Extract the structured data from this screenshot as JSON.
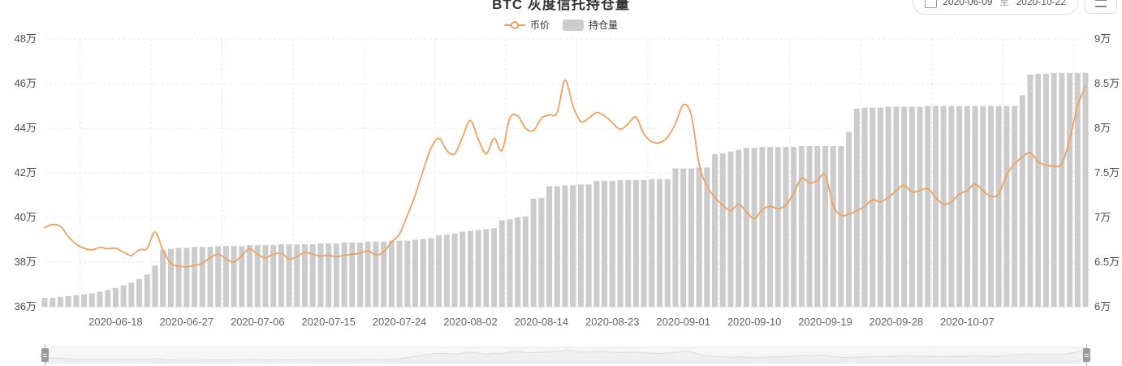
{
  "header": {
    "title": "BTC 灰度信托持仓量"
  },
  "toolbar": {
    "date_start": "2020-06-09",
    "date_separator": "至",
    "date_end": "2020-10-22"
  },
  "legend": [
    {
      "name": "币价",
      "type": "line",
      "color": "#EFA15F"
    },
    {
      "name": "持仓量",
      "type": "bar",
      "color": "#CCCCCC"
    }
  ],
  "chart_data": {
    "type": "combo",
    "title": "BTC 灰度信托持仓量",
    "legend_position": "top-center",
    "grid": {
      "style": "dashed",
      "h_lines": 7,
      "v_line_every": 9
    },
    "left_axis": {
      "series": "币价",
      "unit": "万",
      "min": 36,
      "max": 48,
      "step": 2,
      "labels": [
        "48万",
        "46万",
        "44万",
        "42万",
        "40万",
        "38万",
        "36万"
      ]
    },
    "right_axis": {
      "series": "持仓量",
      "unit": "万",
      "min": 6,
      "max": 9,
      "step": 0.5,
      "labels": [
        "9万",
        "8.5万",
        "8万",
        "7.5万",
        "7万",
        "6.5万",
        "6万"
      ]
    },
    "x_tick_labels": [
      "2020-06-18",
      "2020-06-27",
      "2020-07-06",
      "2020-07-15",
      "2020-07-24",
      "2020-08-02",
      "2020-08-14",
      "2020-08-23",
      "2020-09-01",
      "2020-09-10",
      "2020-09-19",
      "2020-09-28",
      "2020-10-07"
    ],
    "x": [
      "2020-06-09",
      "2020-06-10",
      "2020-06-11",
      "2020-06-12",
      "2020-06-13",
      "2020-06-14",
      "2020-06-15",
      "2020-06-16",
      "2020-06-17",
      "2020-06-18",
      "2020-06-19",
      "2020-06-20",
      "2020-06-21",
      "2020-06-22",
      "2020-06-23",
      "2020-06-24",
      "2020-06-25",
      "2020-06-26",
      "2020-06-27",
      "2020-06-28",
      "2020-06-29",
      "2020-06-30",
      "2020-07-01",
      "2020-07-02",
      "2020-07-03",
      "2020-07-04",
      "2020-07-05",
      "2020-07-06",
      "2020-07-07",
      "2020-07-08",
      "2020-07-09",
      "2020-07-10",
      "2020-07-11",
      "2020-07-12",
      "2020-07-13",
      "2020-07-14",
      "2020-07-15",
      "2020-07-16",
      "2020-07-17",
      "2020-07-18",
      "2020-07-19",
      "2020-07-20",
      "2020-07-21",
      "2020-07-22",
      "2020-07-23",
      "2020-07-24",
      "2020-07-25",
      "2020-07-26",
      "2020-07-27",
      "2020-07-28",
      "2020-07-29",
      "2020-07-30",
      "2020-07-31",
      "2020-08-01",
      "2020-08-02",
      "2020-08-03",
      "2020-08-04",
      "2020-08-05",
      "2020-08-07",
      "2020-08-09",
      "2020-08-11",
      "2020-08-12",
      "2020-08-13",
      "2020-08-14",
      "2020-08-15",
      "2020-08-16",
      "2020-08-17",
      "2020-08-18",
      "2020-08-19",
      "2020-08-20",
      "2020-08-21",
      "2020-08-22",
      "2020-08-23",
      "2020-08-24",
      "2020-08-25",
      "2020-08-26",
      "2020-08-27",
      "2020-08-28",
      "2020-08-29",
      "2020-08-30",
      "2020-08-31",
      "2020-09-01",
      "2020-09-02",
      "2020-09-03",
      "2020-09-04",
      "2020-09-05",
      "2020-09-06",
      "2020-09-07",
      "2020-09-08",
      "2020-09-09",
      "2020-09-10",
      "2020-09-11",
      "2020-09-12",
      "2020-09-13",
      "2020-09-14",
      "2020-09-15",
      "2020-09-16",
      "2020-09-17",
      "2020-09-18",
      "2020-09-19",
      "2020-09-20",
      "2020-09-21",
      "2020-09-22",
      "2020-09-23",
      "2020-09-24",
      "2020-09-25",
      "2020-09-26",
      "2020-09-27",
      "2020-09-28",
      "2020-09-29",
      "2020-09-30",
      "2020-10-01",
      "2020-10-02",
      "2020-10-03",
      "2020-10-04",
      "2020-10-05",
      "2020-10-06",
      "2020-10-07",
      "2020-10-08",
      "2020-10-09",
      "2020-10-10",
      "2020-10-11",
      "2020-10-12",
      "2020-10-13",
      "2020-10-14",
      "2020-10-15",
      "2020-10-16",
      "2020-10-17",
      "2020-10-18",
      "2020-10-19",
      "2020-10-20",
      "2020-10-21",
      "2020-10-22"
    ],
    "series": [
      {
        "name": "币价",
        "type": "line",
        "axis": "left",
        "color": "#EFA15F",
        "smooth": true,
        "values": [
          39.55,
          39.68,
          39.6,
          39.15,
          38.8,
          38.62,
          38.55,
          38.65,
          38.6,
          38.62,
          38.45,
          38.3,
          38.55,
          38.62,
          39.35,
          38.55,
          37.95,
          37.82,
          37.8,
          37.85,
          37.95,
          38.2,
          38.35,
          38.15,
          38.0,
          38.3,
          38.6,
          38.35,
          38.2,
          38.35,
          38.4,
          38.15,
          38.25,
          38.45,
          38.35,
          38.28,
          38.3,
          38.25,
          38.3,
          38.35,
          38.4,
          38.5,
          38.32,
          38.45,
          38.9,
          39.25,
          40.1,
          41.0,
          42.1,
          43.1,
          43.55,
          43.0,
          42.85,
          43.6,
          44.35,
          43.5,
          42.85,
          43.55,
          43.0,
          44.45,
          44.55,
          44.0,
          43.9,
          44.45,
          44.6,
          44.7,
          46.15,
          45.0,
          44.3,
          44.45,
          44.7,
          44.55,
          44.25,
          43.95,
          44.2,
          44.5,
          43.75,
          43.4,
          43.35,
          43.6,
          44.2,
          45.05,
          44.6,
          42.4,
          41.4,
          40.9,
          40.55,
          40.3,
          40.6,
          40.25,
          39.95,
          40.35,
          40.5,
          40.4,
          40.55,
          41.1,
          41.75,
          41.55,
          41.65,
          41.9,
          40.55,
          40.1,
          40.15,
          40.3,
          40.5,
          40.8,
          40.7,
          40.9,
          41.2,
          41.45,
          41.15,
          41.2,
          41.3,
          40.9,
          40.6,
          40.7,
          41.05,
          41.2,
          41.5,
          41.2,
          40.95,
          41.05,
          41.9,
          42.4,
          42.7,
          42.9,
          42.5,
          42.35,
          42.3,
          42.4,
          43.5,
          45.0,
          45.85
        ]
      },
      {
        "name": "持仓量",
        "type": "bar",
        "axis": "right",
        "color": "#CCCCCC",
        "values": [
          6.1,
          6.1,
          6.11,
          6.12,
          6.13,
          6.14,
          6.15,
          6.17,
          6.19,
          6.21,
          6.24,
          6.27,
          6.31,
          6.36,
          6.46,
          6.64,
          6.65,
          6.66,
          6.66,
          6.67,
          6.67,
          6.67,
          6.68,
          6.68,
          6.68,
          6.68,
          6.69,
          6.69,
          6.69,
          6.69,
          6.7,
          6.7,
          6.7,
          6.7,
          6.7,
          6.71,
          6.71,
          6.71,
          6.72,
          6.72,
          6.72,
          6.73,
          6.73,
          6.73,
          6.74,
          6.74,
          6.74,
          6.75,
          6.76,
          6.77,
          6.8,
          6.81,
          6.82,
          6.84,
          6.85,
          6.86,
          6.87,
          6.88,
          6.97,
          6.98,
          7.0,
          7.01,
          7.21,
          7.22,
          7.35,
          7.35,
          7.36,
          7.36,
          7.37,
          7.37,
          7.41,
          7.41,
          7.41,
          7.42,
          7.42,
          7.42,
          7.42,
          7.43,
          7.43,
          7.43,
          7.55,
          7.55,
          7.55,
          7.56,
          7.56,
          7.71,
          7.72,
          7.74,
          7.76,
          7.78,
          7.78,
          7.79,
          7.79,
          7.79,
          7.79,
          7.79,
          7.8,
          7.8,
          7.8,
          7.8,
          7.8,
          7.8,
          7.96,
          8.22,
          8.23,
          8.23,
          8.23,
          8.24,
          8.24,
          8.24,
          8.24,
          8.24,
          8.25,
          8.25,
          8.25,
          8.25,
          8.25,
          8.25,
          8.25,
          8.25,
          8.25,
          8.25,
          8.25,
          8.25,
          8.37,
          8.6,
          8.61,
          8.61,
          8.62,
          8.62,
          8.62,
          8.62,
          8.62
        ]
      }
    ]
  }
}
